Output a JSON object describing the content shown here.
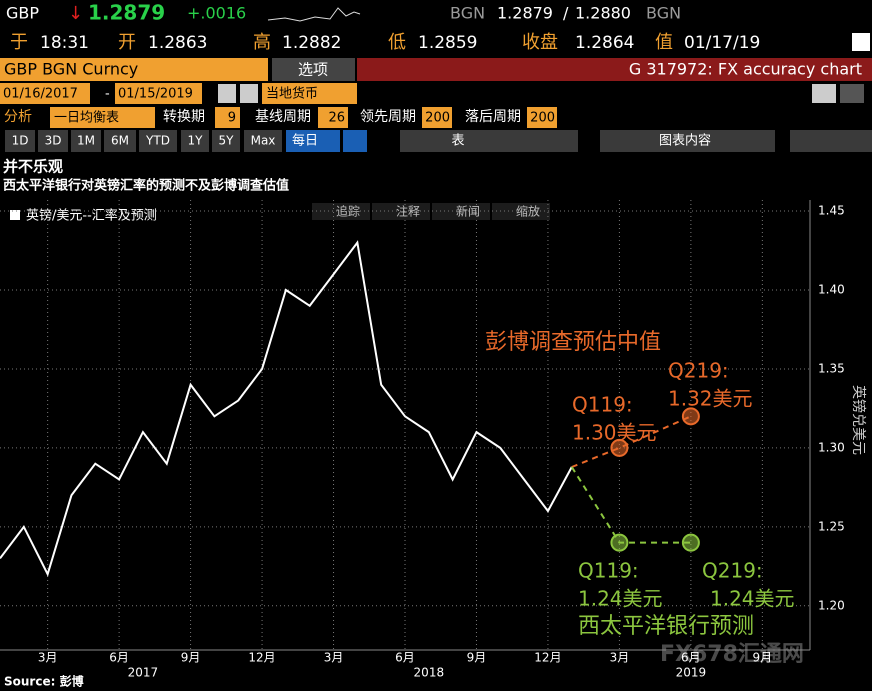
{
  "header": {
    "ticker": "GBP",
    "arrow": "↓",
    "last": "1.2879",
    "change": "+.0016",
    "source1": "BGN",
    "bid": "1.2879",
    "sep": "/",
    "ask": "1.2880",
    "source2": "BGN",
    "time_label": "于",
    "time": "18:31",
    "open_label": "开",
    "open": "1.2863",
    "high_label": "高",
    "high": "1.2882",
    "low_label": "低",
    "low": "1.2859",
    "close_label": "收盘",
    "close": "1.2864",
    "date_label": "值",
    "date": "01/17/19",
    "security": "GBP BGN Curncy",
    "options": "选项",
    "function": "G 317972: FX accuracy chart",
    "start_date": "01/16/2017",
    "dash": "-",
    "end_date": "01/15/2019",
    "currency": "当地货币",
    "analysis": "分析",
    "study": "一日均衡表",
    "conversion_label": "转换期",
    "conversion": "9",
    "base_label": "基线周期",
    "base": "26",
    "leading_label": "领先周期",
    "leading": "200",
    "lagging_label": "落后周期",
    "lagging": "200",
    "periods": [
      "1D",
      "3D",
      "1M",
      "6M",
      "YTD",
      "1Y",
      "5Y",
      "Max"
    ],
    "frequency": "每日",
    "table": "表",
    "chart_content": "图表内容"
  },
  "toolbar": [
    "追踪",
    "注释",
    "新闻",
    "缩放"
  ],
  "source": "Source: 彭博",
  "watermark": "FX678汇通网",
  "chart_data": {
    "type": "line",
    "title": "并不乐观",
    "subtitle": "西太平洋银行对英镑汇率的预测不及彭博调查估值",
    "y_label": "英镑兑美元",
    "xlim": [
      "2017-01",
      "2019-11"
    ],
    "ylim": [
      1.172,
      1.457
    ],
    "yticks": [
      {
        "value": 1.2,
        "label": "1.20"
      },
      1.25,
      {
        "value": 1.3,
        "label": "1.30"
      },
      1.35,
      {
        "value": 1.4,
        "label": "1.40"
      },
      1.45
    ],
    "xticks": [
      {
        "value": "2017-03",
        "label": "3月"
      },
      {
        "value": "2017-06",
        "label": "6月"
      },
      {
        "value": "2017-09",
        "label": "9月"
      },
      {
        "value": "2017-12",
        "label": "12月"
      },
      {
        "value": "2018-03",
        "label": "3月"
      },
      {
        "value": "2018-06",
        "label": "6月"
      },
      {
        "value": "2018-09",
        "label": "9月"
      },
      {
        "value": "2018-12",
        "label": "12月"
      },
      {
        "value": "2019-03",
        "label": "3月"
      },
      {
        "value": "2019-06",
        "label": "6月"
      },
      {
        "value": "2019-09",
        "label": "9月"
      }
    ],
    "year_labels": [
      {
        "value": "2017-07",
        "label": "2017"
      },
      {
        "value": "2018-07",
        "label": "2018"
      },
      {
        "value": "2019-06",
        "label": "2019"
      }
    ],
    "grid": true,
    "series": [
      {
        "name": "英镑/美元--汇率及预测",
        "color": "#ffffff",
        "x": [
          "2017-01",
          "2017-02",
          "2017-03",
          "2017-04",
          "2017-05",
          "2017-06",
          "2017-07",
          "2017-08",
          "2017-09",
          "2017-10",
          "2017-11",
          "2017-12",
          "2018-01",
          "2018-02",
          "2018-03",
          "2018-04",
          "2018-05",
          "2018-06",
          "2018-07",
          "2018-08",
          "2018-09",
          "2018-10",
          "2018-11",
          "2018-12",
          "2019-01"
        ],
        "values": [
          1.23,
          1.25,
          1.22,
          1.27,
          1.29,
          1.28,
          1.31,
          1.29,
          1.34,
          1.32,
          1.33,
          1.35,
          1.4,
          1.39,
          1.41,
          1.43,
          1.34,
          1.32,
          1.31,
          1.28,
          1.31,
          1.3,
          1.28,
          1.26,
          1.2879
        ]
      },
      {
        "color": "#e8692a",
        "x": [
          "2019-01",
          "2019-03",
          "2019-06"
        ],
        "values": [
          1.2879,
          1.3,
          1.32
        ]
      },
      {
        "color": "#8cc63f",
        "x": [
          "2019-01",
          "2019-03",
          "2019-06"
        ],
        "values": [
          1.2879,
          1.24,
          1.24
        ]
      }
    ],
    "annotations": [
      {
        "text": "彭博调查预估中值",
        "color": "#e8692a"
      },
      {
        "text": "Q119:",
        "color": "#e8692a"
      },
      {
        "text": "1.30美元",
        "color": "#e8692a"
      },
      {
        "text": "Q219:",
        "color": "#e8692a"
      },
      {
        "text": "1.32美元",
        "color": "#e8692a"
      },
      {
        "text": "Q119:",
        "color": "#8cc63f"
      },
      {
        "text": "1.24美元",
        "color": "#8cc63f"
      },
      {
        "text": "Q219:",
        "color": "#8cc63f"
      },
      {
        "text": "1.24美元",
        "color": "#8cc63f"
      },
      {
        "text": "西太平洋银行预测",
        "color": "#8cc63f"
      }
    ]
  }
}
